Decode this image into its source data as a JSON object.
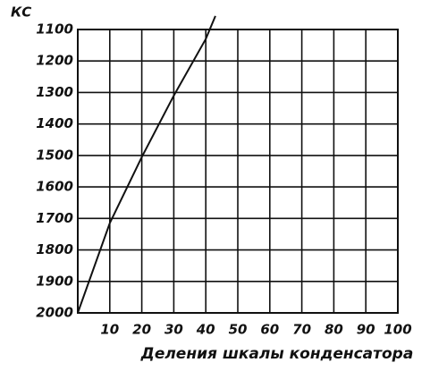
{
  "chart_data": {
    "type": "line",
    "y_label": "КС",
    "x_label": "Деления шкалы конденсатора",
    "x": [
      0,
      10,
      20,
      30,
      40,
      43
    ],
    "values": [
      2000,
      1715,
      1505,
      1310,
      1130,
      1057
    ],
    "color": "#111111",
    "xlim": [
      0,
      100
    ],
    "xticks": [
      10,
      20,
      30,
      40,
      50,
      60,
      70,
      80,
      90,
      100
    ],
    "ylim": [
      2000,
      1100
    ],
    "yticks": [
      1100,
      1200,
      1300,
      1400,
      1500,
      1600,
      1700,
      1800,
      1900,
      2000
    ],
    "grid": true
  }
}
